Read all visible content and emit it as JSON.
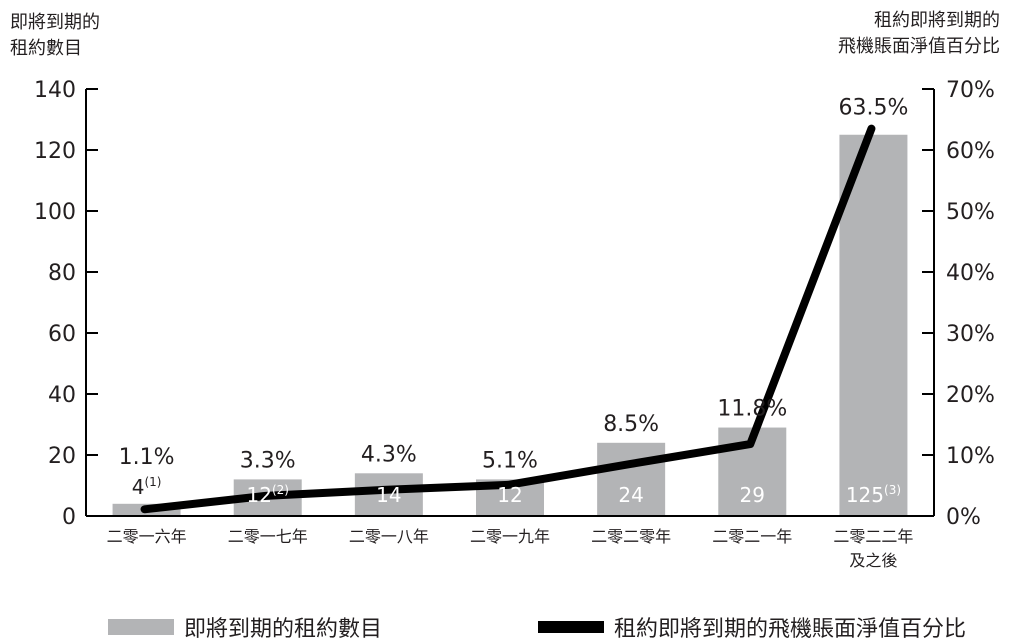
{
  "chart_data": {
    "type": "bar",
    "categories": [
      "二零一六年",
      "二零一七年",
      "二零一八年",
      "二零一九年",
      "二零二零年",
      "二零二一年",
      "二零二二年\n及之後"
    ],
    "series": [
      {
        "name": "即將到期的租約數目",
        "type": "bar",
        "axis": "left",
        "values": [
          4,
          12,
          14,
          12,
          24,
          29,
          125
        ],
        "labels": [
          "4",
          "12",
          "14",
          "12",
          "24",
          "29",
          "125"
        ],
        "footnotes": [
          "(1)",
          "(2)",
          "",
          "",
          "",
          "",
          "(3)"
        ]
      },
      {
        "name": "租約即將到期的飛機賬面淨值百分比",
        "type": "line",
        "axis": "right",
        "values": [
          1.1,
          3.3,
          4.3,
          5.1,
          8.5,
          11.8,
          63.5
        ],
        "labels": [
          "1.1%",
          "3.3%",
          "4.3%",
          "5.1%",
          "8.5%",
          "11.8%",
          "63.5%"
        ]
      }
    ],
    "left_axis": {
      "title_lines": [
        "即將到期的",
        "租約數目"
      ],
      "ylim": [
        0,
        140
      ],
      "ticks": [
        0,
        20,
        40,
        60,
        80,
        100,
        120,
        140
      ],
      "tick_labels": [
        "0",
        "20",
        "40",
        "60",
        "80",
        "100",
        "120",
        "140"
      ]
    },
    "right_axis": {
      "title_lines": [
        "租約即將到期的",
        "飛機賬面淨值百分比"
      ],
      "ylim": [
        0,
        70
      ],
      "ticks": [
        0,
        10,
        20,
        30,
        40,
        50,
        60,
        70
      ],
      "tick_labels": [
        "0%",
        "10%",
        "20%",
        "30%",
        "40%",
        "50%",
        "60%",
        "70%"
      ]
    },
    "grid": false,
    "legend_position": "bottom",
    "colors": {
      "bar": "#b3b4b6",
      "line": "#000000",
      "text": "#231f20",
      "bar_label": "#ffffff"
    }
  },
  "legend": {
    "bar_label": "即將到期的租約數目",
    "line_label": "租約即將到期的飛機賬面淨值百分比"
  }
}
